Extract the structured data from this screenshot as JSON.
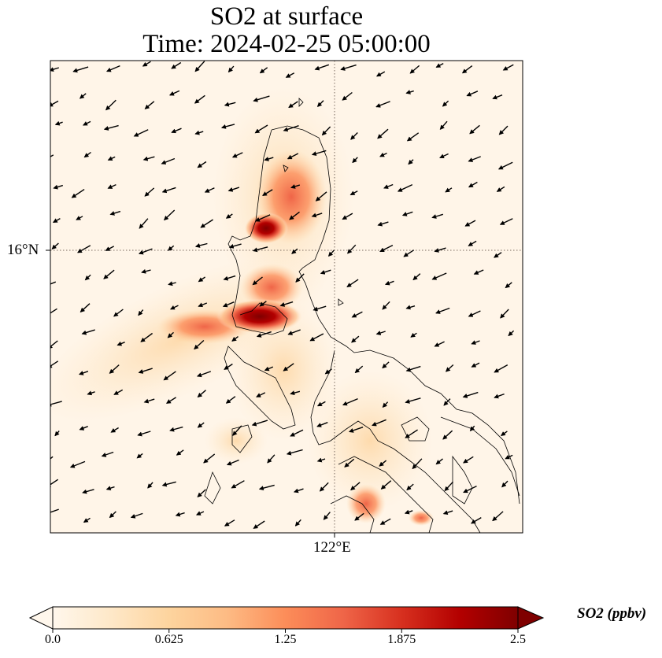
{
  "title": {
    "line1": "SO2 at surface",
    "line2": "Time: 2024-02-25 05:00:00"
  },
  "map": {
    "lat_tick_label": "16°N",
    "lon_tick_label": "122°E",
    "gridline_style": "dotted",
    "field": "SO2 surface concentration with wind vectors",
    "plume_hotspots": [
      {
        "lon": 120.6,
        "lat": 16.2,
        "value": 2.5
      },
      {
        "lon": 121.0,
        "lat": 15.2,
        "value": 2.5
      },
      {
        "lon": 122.6,
        "lat": 13.4,
        "value": 1.3
      }
    ]
  },
  "colorbar": {
    "label": "SO2 (ppbv)",
    "ticks": [
      "0.0",
      "0.625",
      "1.25",
      "1.875",
      "2.5"
    ],
    "vmin": 0.0,
    "vmax": 2.5,
    "colormap": "OrRd",
    "colors": [
      "#fff7ec",
      "#fee8c8",
      "#fdd49e",
      "#fdbb84",
      "#fc8d59",
      "#ef6548",
      "#d7301f",
      "#b30000",
      "#7f0000"
    ]
  }
}
